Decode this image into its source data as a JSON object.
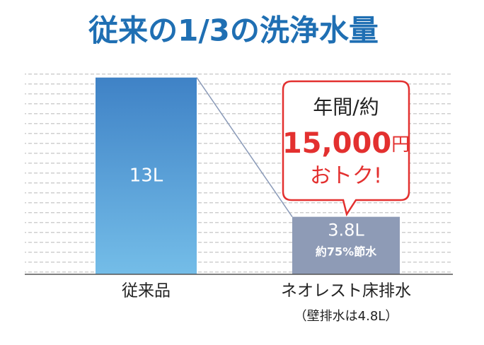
{
  "chart_data": {
    "type": "bar",
    "title": "従来の1/3の洗浄水量",
    "categories": [
      "従来品",
      "ネオレスト床排水"
    ],
    "values": [
      13,
      3.8
    ],
    "value_labels": [
      "13L",
      "3.8L"
    ],
    "ylim": [
      0,
      13.5
    ],
    "note": "（壁排水は4.8L）",
    "saving_label": "約75%節水",
    "callout": {
      "line1": "年間/約",
      "amount": "15,000",
      "unit": "円",
      "line3": "おトク!"
    }
  }
}
